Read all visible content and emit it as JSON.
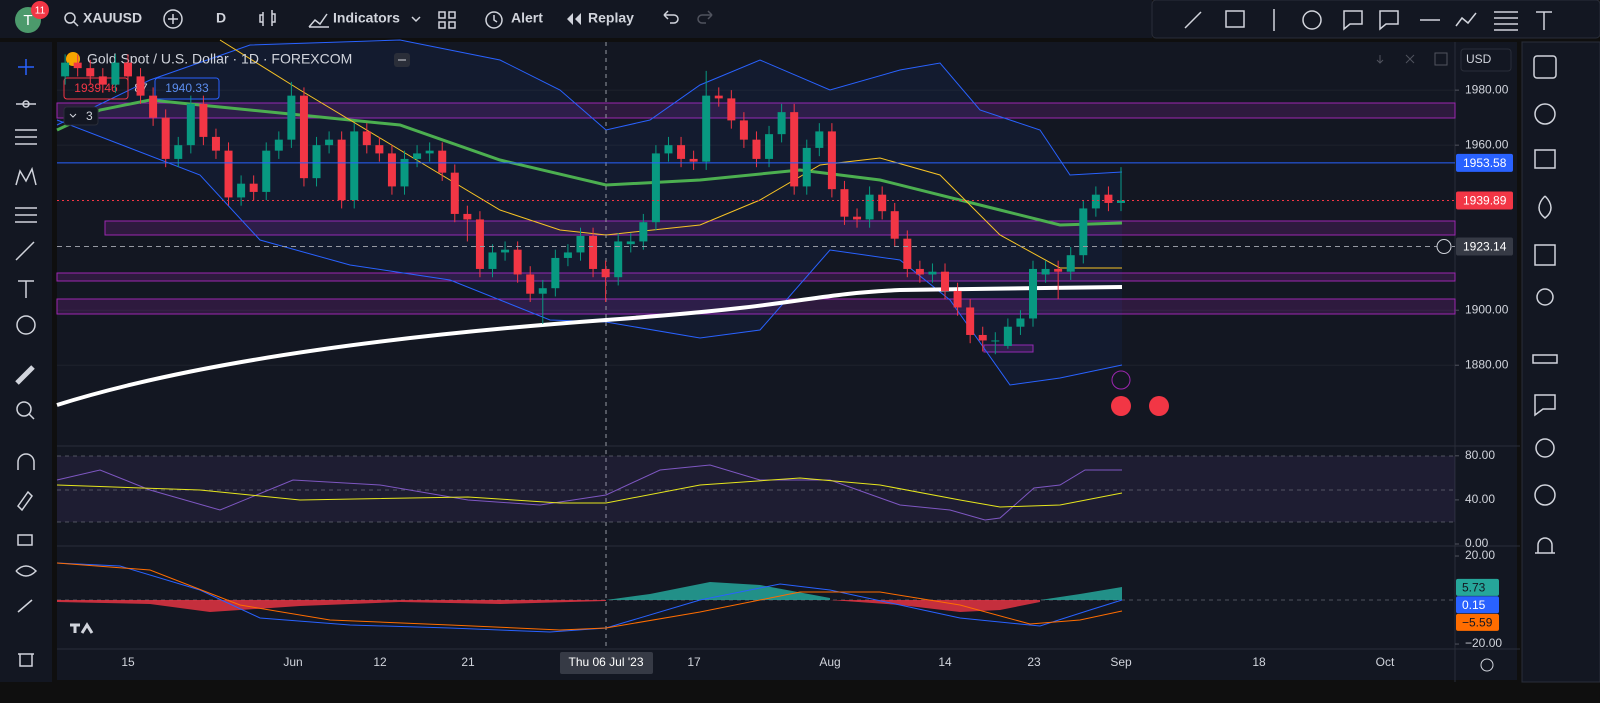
{
  "toolbar": {
    "avatar": "T",
    "badge": "11",
    "symbol": "XAUUSD",
    "interval": "D",
    "indicators": "Indicators",
    "alert": "Alert",
    "replay": "Replay"
  },
  "legend": {
    "title": "Gold Spot / U.S. Dollar · 1D · FOREXCOM",
    "bid": 1939.46,
    "spread": 87,
    "ask": 1940.33,
    "collapsed": "3"
  },
  "chart_data": {
    "type": "candlestick",
    "currency": "USD",
    "up_color": "#089981",
    "down_color": "#f23645",
    "open": [
      1985,
      1990,
      1988,
      1985,
      1982,
      1990,
      1985,
      1978,
      1970,
      1955,
      1960,
      1975,
      1963,
      1958,
      1941,
      1946,
      1943,
      1958,
      1962,
      1978,
      1948,
      1960,
      1962,
      1940,
      1965,
      1960,
      1957,
      1945,
      1955,
      1957,
      1958,
      1950,
      1935,
      1933,
      1915,
      1921,
      1922,
      1913,
      1906,
      1908,
      1919,
      1921,
      1927,
      1915,
      1912,
      1924,
      1925,
      1932,
      1957,
      1960,
      1955,
      1954,
      1978,
      1977,
      1969,
      1962,
      1955,
      1964,
      1972,
      1945,
      1959,
      1965,
      1944,
      1934,
      1933,
      1942,
      1936,
      1926,
      1915,
      1913,
      1914,
      1907,
      1901,
      1891,
      1889,
      1887,
      1894,
      1897,
      1913,
      1915,
      1914,
      1920,
      1937,
      1942,
      1939
    ],
    "high": [
      1993,
      1993,
      1991,
      1988,
      1993,
      1993,
      1988,
      1981,
      1973,
      1963,
      1978,
      1978,
      1966,
      1961,
      1949,
      1949,
      1961,
      1965,
      1983,
      1981,
      1963,
      1965,
      1965,
      1968,
      1968,
      1963,
      1960,
      1958,
      1960,
      1961,
      1961,
      1953,
      1938,
      1936,
      1924,
      1925,
      1925,
      1916,
      1911,
      1922,
      1924,
      1930,
      1930,
      1918,
      1928,
      1928,
      1935,
      1960,
      1963,
      1963,
      1958,
      1987,
      1981,
      1980,
      1972,
      1965,
      1967,
      1975,
      1975,
      1962,
      1968,
      1968,
      1947,
      1937,
      1945,
      1945,
      1939,
      1929,
      1918,
      1917,
      1917,
      1910,
      1904,
      1894,
      1892,
      1897,
      1900,
      1918,
      1918,
      1918,
      1923,
      1940,
      1945,
      1945,
      1952
    ],
    "low": [
      1982,
      1985,
      1982,
      1979,
      1979,
      1982,
      1975,
      1967,
      1952,
      1952,
      1957,
      1960,
      1955,
      1938,
      1938,
      1940,
      1940,
      1955,
      1959,
      1945,
      1945,
      1957,
      1937,
      1937,
      1957,
      1954,
      1942,
      1942,
      1952,
      1954,
      1947,
      1932,
      1925,
      1912,
      1912,
      1918,
      1910,
      1903,
      1895,
      1905,
      1916,
      1918,
      1912,
      1903,
      1909,
      1921,
      1922,
      1929,
      1954,
      1952,
      1951,
      1951,
      1974,
      1966,
      1959,
      1952,
      1952,
      1961,
      1942,
      1942,
      1956,
      1941,
      1931,
      1930,
      1930,
      1933,
      1923,
      1912,
      1910,
      1910,
      1904,
      1898,
      1888,
      1885,
      1884,
      1886,
      1891,
      1894,
      1910,
      1904,
      1911,
      1917,
      1934,
      1936,
      1936
    ],
    "close": [
      1990,
      1988,
      1985,
      1982,
      1990,
      1985,
      1978,
      1970,
      1955,
      1960,
      1975,
      1963,
      1958,
      1941,
      1946,
      1943,
      1958,
      1962,
      1978,
      1948,
      1960,
      1962,
      1940,
      1965,
      1960,
      1957,
      1945,
      1955,
      1957,
      1958,
      1950,
      1935,
      1933,
      1915,
      1921,
      1922,
      1913,
      1906,
      1908,
      1919,
      1921,
      1927,
      1915,
      1912,
      1925,
      1925,
      1932,
      1957,
      1960,
      1955,
      1954,
      1978,
      1977,
      1969,
      1962,
      1955,
      1964,
      1972,
      1945,
      1959,
      1965,
      1944,
      1934,
      1933,
      1942,
      1936,
      1926,
      1915,
      1913,
      1914,
      1907,
      1901,
      1891,
      1889,
      1889,
      1894,
      1897,
      1915,
      1915,
      1914,
      1920,
      1937,
      1942,
      1939,
      1939.89
    ],
    "ylim": [
      1851,
      1997.5
    ],
    "yticks": [
      {
        "value": 1980,
        "label": "1980.00"
      },
      {
        "value": 1960,
        "label": "1960.00"
      },
      {
        "value": 1900,
        "label": "1900.00"
      },
      {
        "value": 1880,
        "label": "1880.00"
      }
    ],
    "price_labels": [
      {
        "value": 1953.58,
        "color": "#2962ff"
      },
      {
        "value": 1939.89,
        "color": "#f23645"
      },
      {
        "value": 1923.14,
        "color": "#363a45"
      }
    ],
    "x_tick_labels": [
      "15",
      "Jun",
      "12",
      "21",
      "17",
      "Aug",
      "14",
      "23",
      "Sep",
      "18",
      "Oct"
    ],
    "crosshair_label": "Thu 06 Jul '23"
  },
  "rsi": {
    "ylim": [
      0,
      88
    ],
    "yticks": [
      {
        "value": 80,
        "label": "80.00"
      },
      {
        "value": 40,
        "label": "40.00"
      },
      {
        "value": 0,
        "label": "0.00"
      }
    ]
  },
  "macd": {
    "ylim": [
      -21.8,
      24.1
    ],
    "yticks": [
      {
        "value": 20,
        "label": "20.00"
      },
      {
        "value": -20,
        "label": "−20.00"
      }
    ],
    "values": [
      5.73,
      0.15,
      -5.59
    ],
    "value_labels": [
      "5.73",
      "0.15",
      "−5.59"
    ],
    "colors": [
      "#26a69a",
      "#2962ff",
      "#ff6d00"
    ]
  }
}
